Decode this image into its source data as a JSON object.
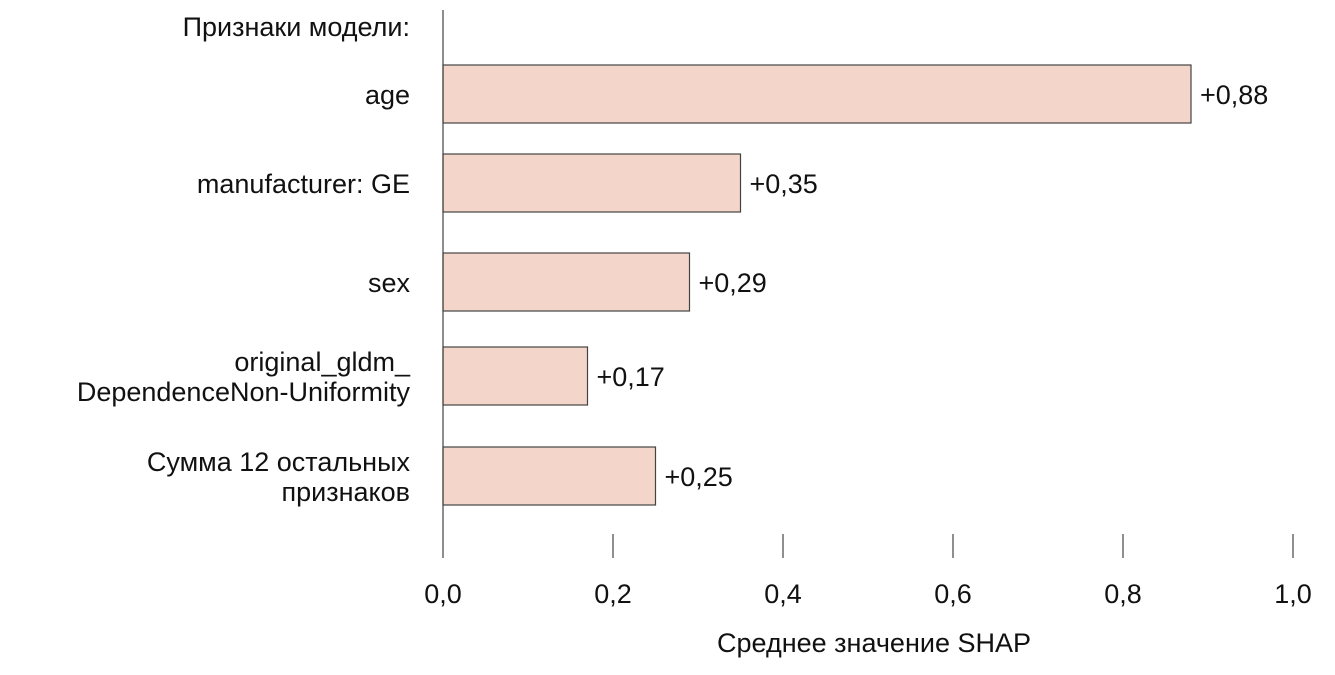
{
  "chart_data": {
    "type": "bar",
    "orientation": "horizontal",
    "category_header": "Признаки модели:",
    "categories": [
      [
        "age"
      ],
      [
        "manufacturer: GE"
      ],
      [
        "sex"
      ],
      [
        "original_gldm_",
        "DependenceNon-Uniformity"
      ],
      [
        "Сумма 12 остальных",
        "признаков"
      ]
    ],
    "values": [
      0.88,
      0.35,
      0.29,
      0.17,
      0.25
    ],
    "value_labels": [
      "+0,88",
      "+0,35",
      "+0,29",
      "+0,17",
      "+0,25"
    ],
    "xlabel": "Среднее значение SHAP",
    "xlim": [
      0,
      1.0
    ],
    "xticks": [
      "0,0",
      "0,2",
      "0,4",
      "0,6",
      "0,8",
      "1,0"
    ],
    "grid": false,
    "colors": {
      "bar_fill": "#f3d6c9",
      "bar_stroke": "#444444"
    }
  }
}
